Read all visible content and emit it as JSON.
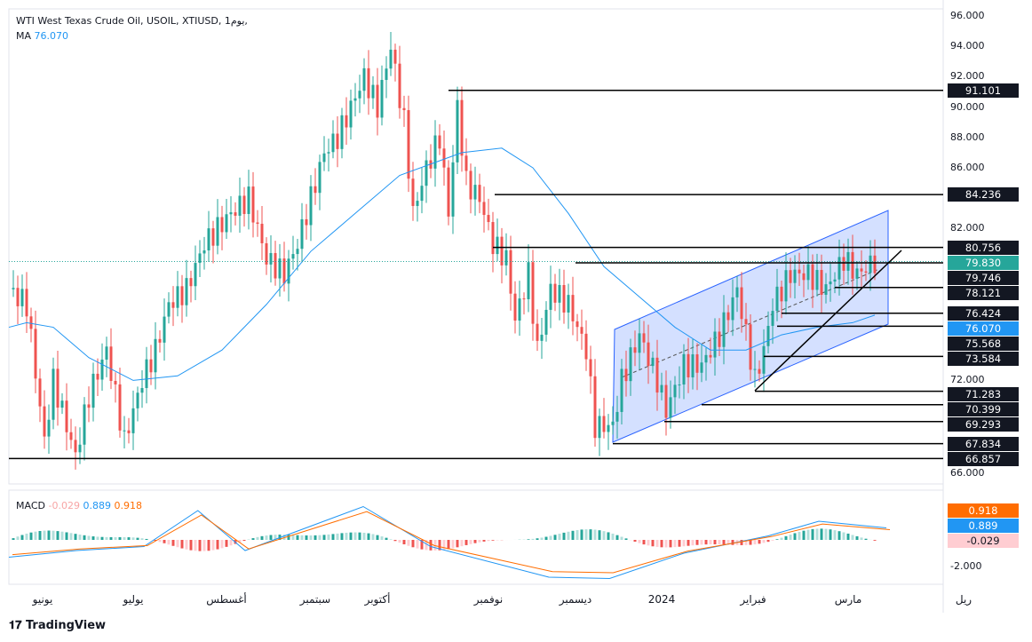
{
  "header": {
    "title": "WTI West Texas Crude Oil, USOIL, XTIUSD, 1يوم,",
    "ma_label": "MA",
    "ma_value": "76.070"
  },
  "macd": {
    "label": "MACD",
    "hist": "-0.029",
    "macd": "0.889",
    "signal": "0.918",
    "axis_tick": "-2.000"
  },
  "colors": {
    "up": "#26a69a",
    "down": "#ef5350",
    "ma": "#2196f3",
    "signal": "#ff6d00",
    "channel": "#2962ff"
  },
  "price_axis_ticks": [
    "96.000",
    "94.000",
    "92.000",
    "90.000",
    "88.000",
    "86.000",
    "82.000",
    "72.000",
    "66.000"
  ],
  "levels": [
    "91.101",
    "84.236",
    "80.756",
    "79.746",
    "78.121",
    "76.424",
    "75.568",
    "73.584",
    "71.283",
    "70.399",
    "69.293",
    "67.834",
    "66.857"
  ],
  "current_price": "79.830",
  "ma_tag": "76.070",
  "time_labels": [
    "يونيو",
    "يوليو",
    "أغسطس",
    "سبتمبر",
    "أكتوبر",
    "نوفمبر",
    "ديسمبر",
    "2024",
    "فبراير",
    "مارس",
    "ريل"
  ],
  "brand": "TradingView",
  "chart_data": {
    "type": "candlestick",
    "ylim": [
      66,
      96
    ],
    "price_path": [
      [
        0,
        78
      ],
      [
        4,
        77
      ],
      [
        8,
        68
      ],
      [
        10,
        72
      ],
      [
        15,
        67
      ],
      [
        18,
        71
      ],
      [
        22,
        74
      ],
      [
        26,
        68
      ],
      [
        30,
        72
      ],
      [
        33,
        74
      ],
      [
        36,
        77
      ],
      [
        40,
        78
      ],
      [
        44,
        81
      ],
      [
        47,
        82
      ],
      [
        50,
        83
      ],
      [
        54,
        84
      ],
      [
        58,
        80
      ],
      [
        62,
        79
      ],
      [
        65,
        81
      ],
      [
        68,
        84
      ],
      [
        71,
        87
      ],
      [
        74,
        88
      ],
      [
        77,
        90
      ],
      [
        80,
        92
      ],
      [
        83,
        90
      ],
      [
        86,
        94
      ],
      [
        89,
        89
      ],
      [
        91,
        83
      ],
      [
        94,
        86
      ],
      [
        97,
        88
      ],
      [
        99,
        83
      ],
      [
        101,
        90
      ],
      [
        103,
        85
      ],
      [
        106,
        84
      ],
      [
        109,
        81
      ],
      [
        112,
        80
      ],
      [
        114,
        76
      ],
      [
        117,
        79
      ],
      [
        119,
        74
      ],
      [
        122,
        78
      ],
      [
        126,
        77
      ],
      [
        130,
        74
      ],
      [
        132,
        69
      ],
      [
        136,
        69
      ],
      [
        138,
        72
      ],
      [
        142,
        75
      ],
      [
        146,
        72
      ],
      [
        148,
        70
      ],
      [
        152,
        73
      ],
      [
        156,
        73
      ],
      [
        160,
        75
      ],
      [
        164,
        78
      ],
      [
        168,
        72
      ],
      [
        170,
        74
      ],
      [
        172,
        77
      ],
      [
        176,
        79
      ],
      [
        180,
        79
      ],
      [
        184,
        78
      ],
      [
        188,
        80
      ],
      [
        191,
        79
      ],
      [
        195,
        79.83
      ]
    ],
    "ma_path": [
      [
        0,
        75.5
      ],
      [
        4,
        75.8
      ],
      [
        10,
        75.5
      ],
      [
        18,
        73.5
      ],
      [
        28,
        72
      ],
      [
        38,
        72.3
      ],
      [
        48,
        74
      ],
      [
        58,
        77
      ],
      [
        68,
        80.5
      ],
      [
        78,
        83
      ],
      [
        88,
        85.5
      ],
      [
        102,
        87
      ],
      [
        111,
        87.3
      ],
      [
        118,
        86
      ],
      [
        126,
        83
      ],
      [
        134,
        79.5
      ],
      [
        142,
        77.5
      ],
      [
        150,
        75.5
      ],
      [
        158,
        74
      ],
      [
        166,
        74
      ],
      [
        174,
        75
      ],
      [
        182,
        75.5
      ],
      [
        190,
        75.8
      ],
      [
        195,
        76.3
      ]
    ]
  }
}
